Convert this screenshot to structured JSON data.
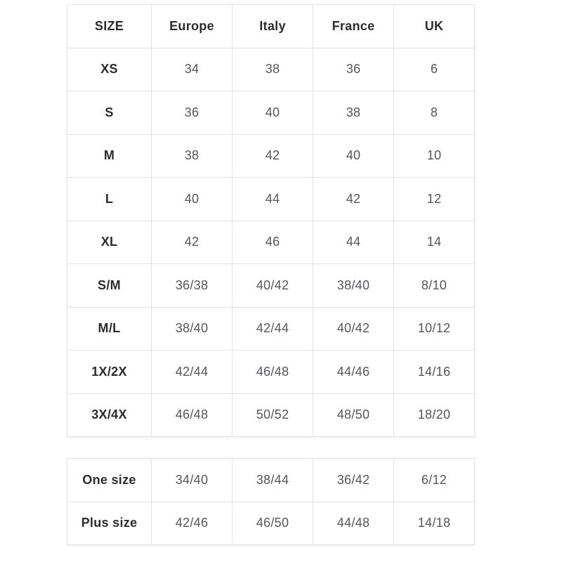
{
  "colors": {
    "border": "#e2e2e2",
    "header_text": "#2b2b33",
    "cell_text": "#55555f",
    "page_bg": "#ffffff"
  },
  "size_table": {
    "headers": [
      "SIZE",
      "Europe",
      "Italy",
      "France",
      "UK"
    ],
    "rows": [
      {
        "label": "XS",
        "values": [
          "34",
          "38",
          "36",
          "6"
        ]
      },
      {
        "label": "S",
        "values": [
          "36",
          "40",
          "38",
          "8"
        ]
      },
      {
        "label": "M",
        "values": [
          "38",
          "42",
          "40",
          "10"
        ]
      },
      {
        "label": "L",
        "values": [
          "40",
          "44",
          "42",
          "12"
        ]
      },
      {
        "label": "XL",
        "values": [
          "42",
          "46",
          "44",
          "14"
        ]
      },
      {
        "label": "S/M",
        "values": [
          "36/38",
          "40/42",
          "38/40",
          "8/10"
        ]
      },
      {
        "label": "M/L",
        "values": [
          "38/40",
          "42/44",
          "40/42",
          "10/12"
        ]
      },
      {
        "label": "1X/2X",
        "values": [
          "42/44",
          "46/48",
          "44/46",
          "14/16"
        ]
      },
      {
        "label": "3X/4X",
        "values": [
          "46/48",
          "50/52",
          "48/50",
          "18/20"
        ]
      }
    ]
  },
  "special_table": {
    "rows": [
      {
        "label": "One size",
        "values": [
          "34/40",
          "38/44",
          "36/42",
          "6/12"
        ]
      },
      {
        "label": "Plus size",
        "values": [
          "42/46",
          "46/50",
          "44/48",
          "14/18"
        ]
      }
    ]
  }
}
